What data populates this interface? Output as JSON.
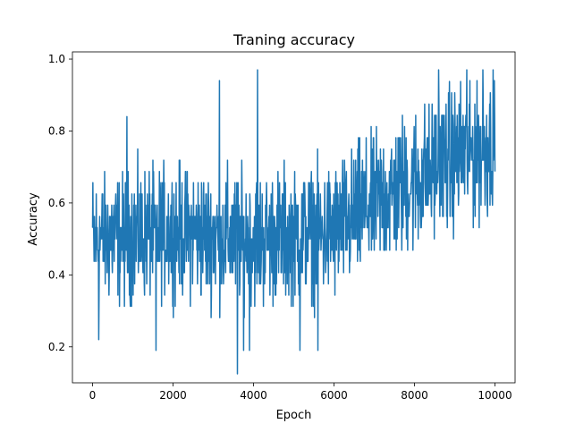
{
  "chart_data": {
    "type": "line",
    "title": "Traning accuracy",
    "xlabel": "Epoch",
    "ylabel": "Accuracy",
    "xlim": [
      -500,
      10500
    ],
    "ylim": [
      0.1,
      1.02
    ],
    "x_ticks": [
      0,
      2000,
      4000,
      6000,
      8000,
      10000
    ],
    "y_ticks": [
      0.2,
      0.4,
      0.6,
      0.8,
      1.0
    ],
    "x_tick_labels": [
      "0",
      "2000",
      "4000",
      "6000",
      "8000",
      "10000"
    ],
    "y_tick_labels": [
      "0.2",
      "0.4",
      "0.6",
      "0.8",
      "1.0"
    ],
    "grid": false,
    "line_color": "#1f77b4",
    "series": [
      {
        "x_range": [
          0,
          10000
        ],
        "trend": [
          [
            0,
            0.5
          ],
          [
            2000,
            0.52
          ],
          [
            4000,
            0.5
          ],
          [
            6000,
            0.52
          ],
          [
            7000,
            0.6
          ],
          [
            8000,
            0.66
          ],
          [
            9000,
            0.73
          ],
          [
            10000,
            0.76
          ]
        ],
        "spread": [
          [
            0,
            0.11
          ],
          [
            6000,
            0.11
          ],
          [
            8000,
            0.12
          ],
          [
            10000,
            0.12
          ]
        ],
        "min": 0.125,
        "max": 0.97,
        "spikes": [
          {
            "x": 3150,
            "y": 0.94
          },
          {
            "x": 4100,
            "y": 0.97
          },
          {
            "x": 3600,
            "y": 0.125
          },
          {
            "x": 1580,
            "y": 0.19
          },
          {
            "x": 3750,
            "y": 0.19
          },
          {
            "x": 3900,
            "y": 0.19
          },
          {
            "x": 5150,
            "y": 0.19
          },
          {
            "x": 5600,
            "y": 0.19
          },
          {
            "x": 150,
            "y": 0.22
          },
          {
            "x": 850,
            "y": 0.84
          },
          {
            "x": 8600,
            "y": 0.97
          },
          {
            "x": 9300,
            "y": 0.97
          },
          {
            "x": 9700,
            "y": 0.97
          },
          {
            "x": 9950,
            "y": 0.97
          }
        ]
      }
    ]
  }
}
